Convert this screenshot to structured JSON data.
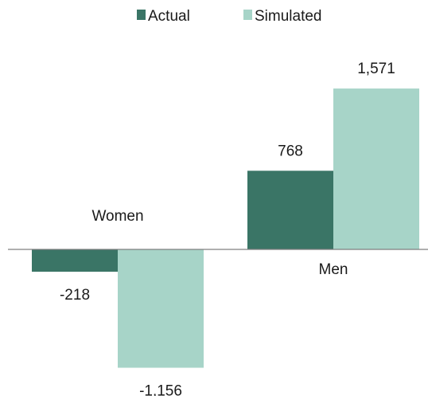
{
  "chart_data": {
    "type": "bar",
    "categories": [
      "Women",
      "Men"
    ],
    "series": [
      {
        "name": "Actual",
        "values": [
          -218,
          768
        ],
        "labels": [
          "-218",
          "768"
        ]
      },
      {
        "name": "Simulated",
        "values": [
          -1156,
          1571
        ],
        "labels": [
          "-1,156",
          "1,571"
        ]
      }
    ],
    "colors": {
      "Actual": "#3a7566",
      "Simulated": "#a7d4c8",
      "axis": "#7f7f7f"
    },
    "legend_position": "top-center",
    "grid": false,
    "ylim": [
      -1400,
      1900
    ]
  }
}
